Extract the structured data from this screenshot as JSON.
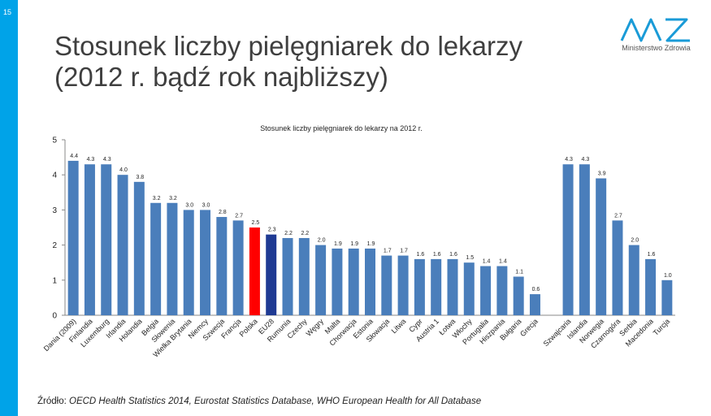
{
  "slide": {
    "number": "15",
    "sidebar_color": "#00a3e8"
  },
  "title": {
    "line1": "Stosunek liczby pielęgniarek do lekarzy",
    "line2": "(2012 r. bądź rok najbliższy)"
  },
  "logo": {
    "text": "Ministerstwo Zdrowia",
    "color": "#1a9bd7"
  },
  "source": {
    "prefix": "Źródło:",
    "text": "OECD Health Statistics 2014, Eurostat Statistics Database, WHO European Health for All Database"
  },
  "chart_data": {
    "type": "bar",
    "title": "Stosunek liczby pielęgniarek do lekarzy na 2012 r.",
    "xlabel": "",
    "ylabel": "",
    "ylim": [
      0,
      5
    ],
    "yticks": [
      0,
      1,
      2,
      3,
      4,
      5
    ],
    "grid": false,
    "legend": "none",
    "colors": {
      "default": "#4a7ebb",
      "poland": "#ff0000",
      "eu": "#1f3a93"
    },
    "categories": [
      "Dania (2009)",
      "Finlandia",
      "Luxemburg",
      "Irlandia",
      "Holandia",
      "Belgia",
      "Słowenia",
      "Wielka Brytania",
      "Niemcy",
      "Szwecja",
      "Francja",
      "Polska",
      "EU28",
      "Rumunia",
      "Czechy",
      "Węgry",
      "Malta",
      "Chorwacja",
      "Estonia",
      "Słowacja",
      "Litwa",
      "Cypr",
      "Austria 1",
      "Łotwa",
      "Włochy",
      "Portugalia",
      "Hiszpania",
      "Bułgaria",
      "Grecja",
      "",
      "Szwajcaria",
      "Islandia",
      "Norwegia",
      "Czarnogóra",
      "Serbia",
      "Macedonia",
      "Turcja"
    ],
    "values": [
      4.4,
      4.3,
      4.3,
      4.0,
      3.8,
      3.2,
      3.2,
      3.0,
      3.0,
      2.8,
      2.7,
      2.5,
      2.3,
      2.2,
      2.2,
      2.0,
      1.9,
      1.9,
      1.9,
      1.7,
      1.7,
      1.6,
      1.6,
      1.6,
      1.5,
      1.4,
      1.4,
      1.1,
      0.6,
      null,
      4.3,
      4.3,
      3.9,
      2.7,
      2.0,
      1.6,
      1.0
    ],
    "value_labels": [
      "4.4",
      "4.3",
      "4.3",
      "4.0",
      "3.8",
      "3.2",
      "3.2",
      "3.0",
      "3.0",
      "2.8",
      "2.7",
      "2.5",
      "2.3",
      "2.2",
      "2.2",
      "2.0",
      "1.9",
      "1.9",
      "1.9",
      "1.7",
      "1.7",
      "1.6",
      "1.6",
      "1.6",
      "1.5",
      "1.4",
      "1.4",
      "1.1",
      "0.6",
      "",
      "4.3",
      "4.3",
      "3.9",
      "2.7",
      "2.0",
      "1.6",
      "1.0"
    ],
    "highlight": {
      "Polska": "poland",
      "EU28": "eu"
    }
  }
}
